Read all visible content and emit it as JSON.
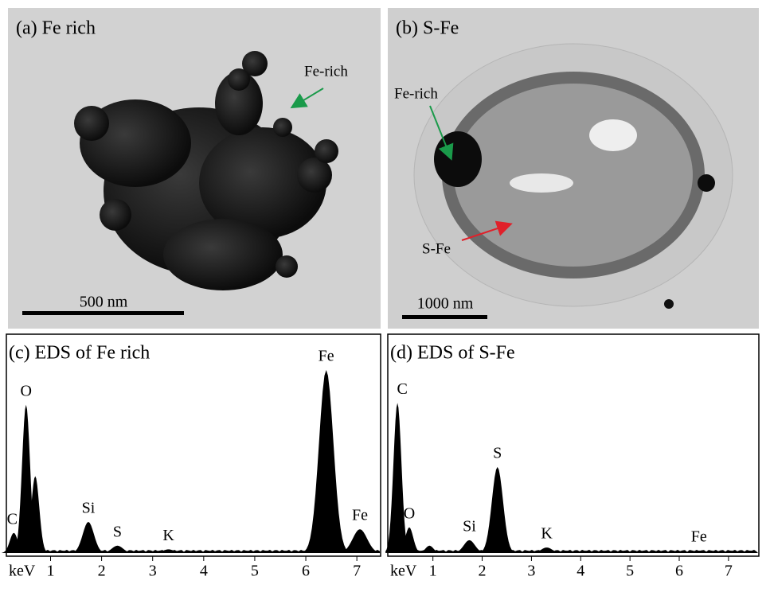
{
  "panels": [
    {
      "label": "(a) Fe rich",
      "scale_bar": "500 nm",
      "annotation": "Fe-rich"
    },
    {
      "label": "(b) S-Fe",
      "scale_bar": "1000 nm",
      "annotations": [
        "Fe-rich",
        "S-Fe"
      ]
    }
  ],
  "spectra": [
    {
      "title": "(c) EDS of Fe rich",
      "x_label": "keV",
      "xlim": [
        0.15,
        7.45
      ],
      "xticks": [
        1,
        2,
        3,
        4,
        5,
        6,
        7
      ],
      "peaks": [
        {
          "label": "C",
          "energy": 0.28,
          "height": 11
        },
        {
          "label": "O",
          "energy": 0.52,
          "height": 81
        },
        {
          "label": null,
          "energy": 0.7,
          "height": 42
        },
        {
          "label": "Si",
          "energy": 1.74,
          "height": 17
        },
        {
          "label": "S",
          "energy": 2.31,
          "height": 4
        },
        {
          "label": "K",
          "energy": 3.31,
          "height": 2
        },
        {
          "label": "Fe",
          "energy": 6.4,
          "height": 100
        },
        {
          "label": "Fe",
          "energy": 7.06,
          "height": 13
        }
      ]
    },
    {
      "title": "(d) EDS of S-Fe",
      "x_label": "keV",
      "xlim": [
        0.1,
        7.6
      ],
      "xticks": [
        1,
        2,
        3,
        4,
        5,
        6,
        7
      ],
      "peaks": [
        {
          "label": "C",
          "energy": 0.28,
          "height": 82
        },
        {
          "label": "O",
          "energy": 0.52,
          "height": 14
        },
        {
          "label": null,
          "energy": 0.93,
          "height": 4
        },
        {
          "label": "Si",
          "energy": 1.74,
          "height": 7
        },
        {
          "label": "S",
          "energy": 2.31,
          "height": 47
        },
        {
          "label": "K",
          "energy": 3.31,
          "height": 3
        },
        {
          "label": "Fe",
          "energy": 6.4,
          "height": 1.3
        }
      ]
    }
  ]
}
